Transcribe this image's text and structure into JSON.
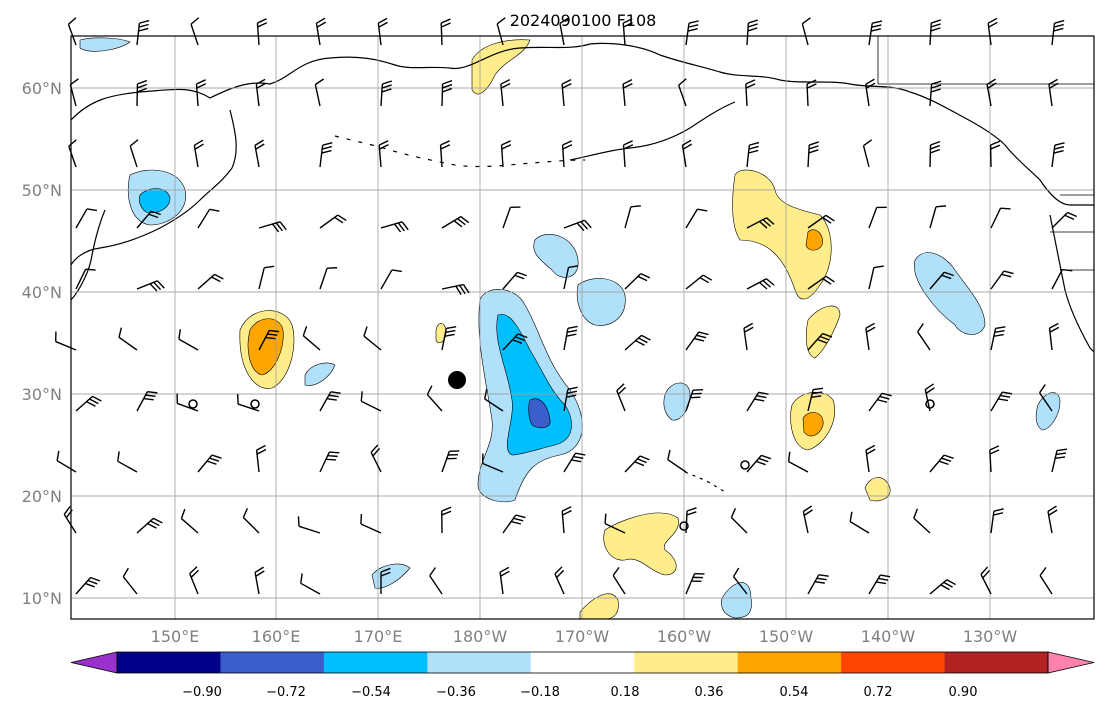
{
  "title": "2024090100 F108",
  "map": {
    "lat_labels": [
      "60°N",
      "50°N",
      "40°N",
      "30°N",
      "20°N",
      "10°N"
    ],
    "lon_labels": [
      "150°E",
      "160°E",
      "170°E",
      "180°W",
      "170°W",
      "160°W",
      "150°W",
      "140°W",
      "130°W"
    ],
    "land_line_color": "#000000",
    "grid_color": "#a0a0a0"
  },
  "colorbar": {
    "ticks": [
      "−0.90",
      "−0.72",
      "−0.54",
      "−0.36",
      "−0.18",
      "0.18",
      "0.36",
      "0.54",
      "0.72",
      "0.90"
    ],
    "colors": [
      "#9932cc",
      "#00008b",
      "#3a5fcd",
      "#00bfff",
      "#b0e0fa",
      "#ffffff",
      "#ffec8b",
      "#ffa500",
      "#ff4500",
      "#b22222",
      "#ff82ab"
    ]
  },
  "markers": {
    "storm_center": "filled-circle",
    "calm_wind": "open-circle"
  }
}
